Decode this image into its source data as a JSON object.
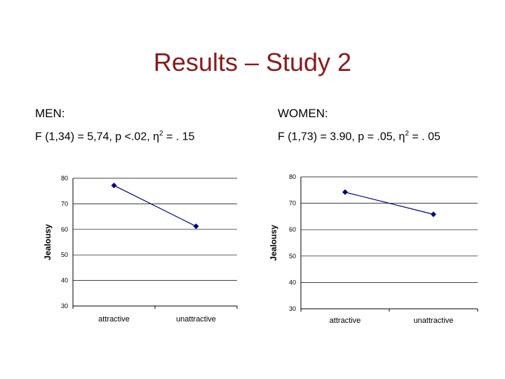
{
  "slide": {
    "title": "Results – Study 2"
  },
  "men": {
    "heading": "MEN:",
    "stat_prefix": "F (1,34) = 5,74, p <.02, η",
    "stat_sup": "2",
    "stat_suffix": " = . 15"
  },
  "women": {
    "heading": "WOMEN:",
    "stat_prefix": "F (1,73) = 3.90, p = .05, η",
    "stat_sup": "2",
    "stat_suffix": " = . 05"
  },
  "chart_data": [
    {
      "type": "line",
      "title": "",
      "xlabel": "",
      "ylabel": "Jealousy",
      "categories": [
        "attractive",
        "unattractive"
      ],
      "series": [
        {
          "values": [
            77.2,
            61.2
          ]
        }
      ],
      "ylim": [
        30,
        80
      ],
      "yticks": [
        30,
        40,
        50,
        60,
        70,
        80
      ],
      "grid": true,
      "line_color": "#000080",
      "marker": "diamond"
    },
    {
      "type": "line",
      "title": "",
      "xlabel": "",
      "ylabel": "Jealousy",
      "categories": [
        "attractive",
        "unattractive"
      ],
      "series": [
        {
          "values": [
            74.2,
            65.8
          ]
        }
      ],
      "ylim": [
        30,
        80
      ],
      "yticks": [
        30,
        40,
        50,
        60,
        70,
        80
      ],
      "grid": true,
      "line_color": "#000080",
      "marker": "diamond"
    }
  ]
}
